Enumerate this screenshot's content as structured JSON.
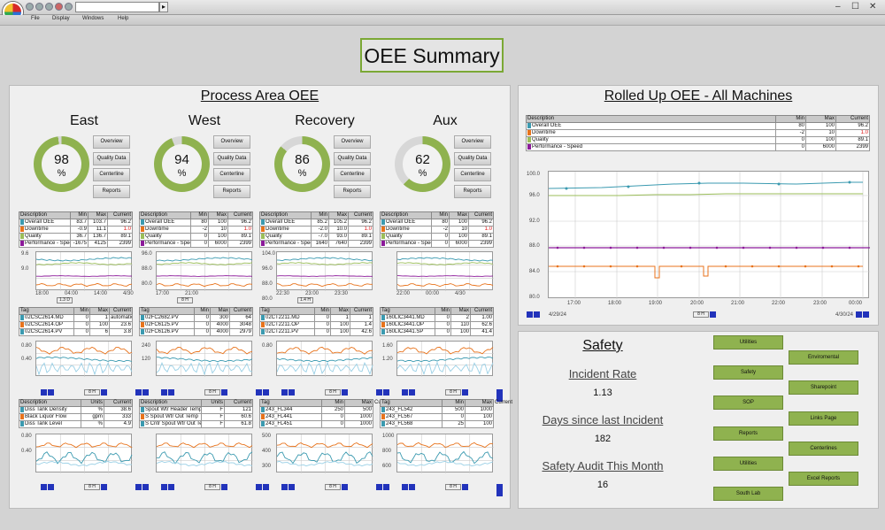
{
  "menu": {
    "file": "File",
    "display": "Display",
    "windows": "Windows",
    "help": "Help"
  },
  "page_title": "OEE Summary",
  "process": {
    "title": "Process Area OEE",
    "areas": [
      {
        "name": "East",
        "value": "98",
        "pct": "%",
        "oee": 98,
        "buttons": [
          "Overview",
          "Quality Data",
          "Centerline",
          "Reports"
        ],
        "table": {
          "headers": [
            "Description",
            "Min",
            "Max",
            "Current"
          ],
          "rows": [
            [
              "Overall OEE",
              "83.7",
              "103.7",
              "96.2"
            ],
            [
              "Downtime",
              "-0.9",
              "11.1",
              "1.0"
            ],
            [
              "Quality",
              "36.7",
              "136.7",
              "89.1"
            ],
            [
              "Performance - Speed",
              "-1675",
              "4125",
              "2399"
            ]
          ]
        },
        "range": "1.3 D",
        "xticks": [
          "18:00",
          "04:00",
          "14:00",
          "4/30"
        ],
        "yticks": [
          "9.6",
          "9.0"
        ],
        "tags": {
          "headers": [
            "Tag",
            "Min",
            "Max",
            "Current"
          ],
          "rows": [
            [
              "02CSC2614.MD",
              "0",
              "1",
              "automatic"
            ],
            [
              "02CSC2614.OP",
              "0",
              "100",
              "23.6"
            ],
            [
              "02CSC2614.PV",
              "0",
              "6",
              "3.8"
            ]
          ]
        },
        "tagrange": "8 H",
        "c2ticks": [
          "0.80",
          "0.40"
        ],
        "lower": {
          "headers": [
            "Description",
            "Units",
            "Current"
          ],
          "rows": [
            [
              "Diss Tank Density",
              "%",
              "38.6"
            ],
            [
              "Black Liquor Flow",
              "gpm",
              "333"
            ],
            [
              "Diss Tank Level",
              "%",
              "4.9"
            ]
          ]
        },
        "lowrange": "8 H",
        "c3ticks": [
          "0.80",
          "0.40"
        ]
      },
      {
        "name": "West",
        "value": "94",
        "pct": "%",
        "oee": 94,
        "buttons": [
          "Overview",
          "Quality Data",
          "Centerline",
          "Reports"
        ],
        "table": {
          "headers": [
            "Description",
            "Min",
            "Max",
            "Current"
          ],
          "rows": [
            [
              "Overall OEE",
              "80",
              "100",
              "96.2"
            ],
            [
              "Downtime",
              "-2",
              "10",
              "1.0"
            ],
            [
              "Quality",
              "0",
              "100",
              "89.1"
            ],
            [
              "Performance - Speed",
              "0",
              "6000",
              "2399"
            ]
          ]
        },
        "range": "8 H",
        "xticks": [
          "17:00",
          "21:00"
        ],
        "yticks": [
          "96.0",
          "88.0",
          "80.0"
        ],
        "tags": {
          "headers": [
            "Tag",
            "Min",
            "Max",
            "Current"
          ],
          "rows": [
            [
              "02FC2682.PV",
              "0",
              "300",
              "64"
            ],
            [
              "02FC6125.PV",
              "0",
              "4000",
              "3048"
            ],
            [
              "02FC6126.PV",
              "0",
              "4000",
              "2979"
            ]
          ]
        },
        "tagrange": "8 H",
        "c2ticks": [
          "240",
          "120"
        ],
        "lower": {
          "headers": [
            "Description",
            "Units",
            "Current"
          ],
          "rows": [
            [
              "Spout Wtr Header Temp",
              "F",
              "121"
            ],
            [
              "S Spout Wtr Out Temp",
              "F",
              "60.6"
            ],
            [
              "S Cntr Spout Wtr Out Temp",
              "F",
              "61.8"
            ]
          ]
        },
        "lowrange": "8 H",
        "c3ticks": []
      },
      {
        "name": "Recovery",
        "value": "86",
        "pct": "%",
        "oee": 86,
        "buttons": [
          "Overview",
          "Quality Data",
          "Centerline",
          "Reports"
        ],
        "table": {
          "headers": [
            "Description",
            "Min",
            "Max",
            "Current"
          ],
          "rows": [
            [
              "Overall OEE",
              "85.2",
              "105.2",
              "96.2"
            ],
            [
              "Downtime",
              "-2.0",
              "10.0",
              "1.0"
            ],
            [
              "Quality",
              "-7.0",
              "93.0",
              "89.1"
            ],
            [
              "Performance - Speed",
              "1640",
              "7640",
              "2399"
            ]
          ]
        },
        "range": "1.4 H",
        "xticks": [
          "22:30",
          "23:00",
          "23:30"
        ],
        "yticks": [
          "104.0",
          "96.0",
          "88.0",
          "80.0"
        ],
        "tags": {
          "headers": [
            "Tag",
            "Min",
            "Max",
            "Current"
          ],
          "rows": [
            [
              "02CT2211.MD",
              "0",
              "1",
              "1"
            ],
            [
              "02CT2211.OP",
              "0",
              "100",
              "1.4"
            ],
            [
              "02CT2211.PV",
              "0",
              "100",
              "42.6"
            ]
          ]
        },
        "tagrange": "8 H",
        "c2ticks": [
          "0.80"
        ],
        "lower": {
          "headers": [
            "Tag",
            "Min",
            "Max",
            "Current"
          ],
          "rows": [
            [
              "243_FL344",
              "250",
              "500",
              "286"
            ],
            [
              "243_FL441",
              "0",
              "1000",
              "74.6"
            ],
            [
              "243_FL451",
              "0",
              "1000",
              "619"
            ]
          ]
        },
        "lowrange": "8 H",
        "c3ticks": [
          "500",
          "400",
          "300"
        ]
      },
      {
        "name": "Aux",
        "value": "62",
        "pct": "%",
        "oee": 62,
        "buttons": [
          "Overview",
          "Quality Data",
          "Centerline",
          "Reports"
        ],
        "table": {
          "headers": [
            "Description",
            "Min",
            "Max",
            "Current"
          ],
          "rows": [
            [
              "Overall OEE",
              "80",
              "100",
              "96.2"
            ],
            [
              "Downtime",
              "-2",
              "10",
              "1.0"
            ],
            [
              "Quality",
              "0",
              "100",
              "89.1"
            ],
            [
              "Performance - Speed",
              "0",
              "6000",
              "2399"
            ]
          ]
        },
        "range": "3.1 H",
        "xticks": [
          "22:00",
          "00:00",
          "4/30"
        ],
        "yticks": [],
        "tags": {
          "headers": [
            "Tag",
            "Min",
            "Max",
            "Current"
          ],
          "rows": [
            [
              "160LIC3441.MD",
              "0",
              "2",
              "1.00"
            ],
            [
              "160LIC3441.OP",
              "0",
              "110",
              "62.6"
            ],
            [
              "160LIC3441.SP",
              "0",
              "100",
              "41.4"
            ]
          ]
        },
        "tagrange": "8 H",
        "c2ticks": [
          "1.60",
          "1.20"
        ],
        "lower": {
          "headers": [
            "Tag",
            "Min",
            "Max",
            "Current"
          ],
          "rows": [
            [
              "243_FL542",
              "500",
              "1000",
              "627"
            ],
            [
              "243_FL567",
              "0",
              "100",
              "41.4"
            ],
            [
              "243_FL568",
              "25",
              "100",
              "78.2"
            ]
          ]
        },
        "lowrange": "8 H",
        "c3ticks": [
          "1000",
          "800",
          "600"
        ]
      }
    ]
  },
  "rolled": {
    "title": "Rolled Up OEE - All Machines",
    "headers": [
      "Description",
      "Min",
      "Max",
      "Current"
    ],
    "rows": [
      [
        "Overall OEE",
        "80",
        "100",
        "96.2"
      ],
      [
        "Downtime",
        "-2",
        "10",
        "1.0"
      ],
      [
        "Quality",
        "0",
        "100",
        "89.1"
      ],
      [
        "Performance - Speed",
        "0",
        "6000",
        "2399"
      ]
    ],
    "yticks": [
      "100.0",
      "96.0",
      "92.0",
      "88.0",
      "84.0",
      "80.0"
    ],
    "xticks": [
      "17:00",
      "18:00",
      "19:00",
      "20:00",
      "21:00",
      "22:00",
      "23:00",
      "00:00"
    ],
    "date_left": "4/29/24",
    "date_right": "4/30/24",
    "range": "8 H"
  },
  "colors": {
    "overall": "#3b9ab0",
    "downtime": "#e8731c",
    "quality": "#9bbe5a",
    "speed": "#8c1a9a",
    "accent": "#8fb24f"
  },
  "safety": {
    "title": "Safety",
    "incident_rate_label": "Incident Rate",
    "incident_rate": "1.13",
    "days_label": "Days since last Incident",
    "days": "182",
    "audit_label": "Safety Audit This Month",
    "audit": "16",
    "left_buttons": [
      "Utilities",
      "Safety",
      "SOP",
      "Reports",
      "Utilities",
      "South Lab"
    ],
    "right_buttons": [
      "Enviromental",
      "Sharepoint",
      "Links Page",
      "Centerlines",
      "Excel Reports"
    ]
  }
}
